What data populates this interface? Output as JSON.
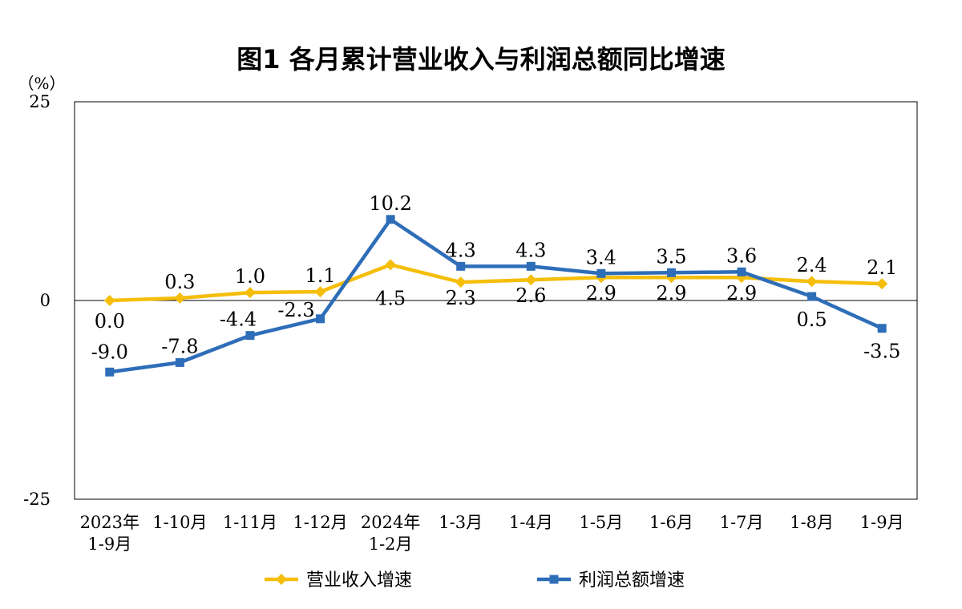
{
  "chart_data": {
    "type": "line",
    "title": "图1  各月累计营业收入与利润总额同比增速",
    "y_unit": "（%）",
    "ylim": [
      -25,
      25
    ],
    "y_ticks": [
      "25",
      "0",
      "-25"
    ],
    "categories": [
      [
        "2023年",
        "1-9月"
      ],
      [
        "1-10月"
      ],
      [
        "1-11月"
      ],
      [
        "1-12月"
      ],
      [
        "2024年",
        "1-2月"
      ],
      [
        "1-3月"
      ],
      [
        "1-4月"
      ],
      [
        "1-5月"
      ],
      [
        "1-6月"
      ],
      [
        "1-7月"
      ],
      [
        "1-8月"
      ],
      [
        "1-9月"
      ]
    ],
    "series": [
      {
        "name": "营业收入增速",
        "color": "#F5BE0B",
        "marker": "diamond",
        "values": [
          0.0,
          0.3,
          1.0,
          1.1,
          4.5,
          2.3,
          2.6,
          2.9,
          2.9,
          2.9,
          2.4,
          2.1
        ],
        "labels": [
          "0.0",
          "0.3",
          "1.0",
          "1.1",
          "4.5",
          "2.3",
          "2.6",
          "2.9",
          "2.9",
          "2.9",
          "2.4",
          "2.1"
        ]
      },
      {
        "name": "利润总额增速",
        "color": "#2E6DB8",
        "marker": "square",
        "values": [
          -9.0,
          -7.8,
          -4.4,
          -2.3,
          10.2,
          4.3,
          4.3,
          3.4,
          3.5,
          3.6,
          0.5,
          -3.5
        ],
        "labels": [
          "-9.0",
          "-7.8",
          "-4.4",
          "-2.3",
          "10.2",
          "4.3",
          "4.3",
          "3.4",
          "3.5",
          "3.6",
          "0.5",
          "-3.5"
        ]
      }
    ],
    "legend_position": "bottom",
    "grid": false
  }
}
